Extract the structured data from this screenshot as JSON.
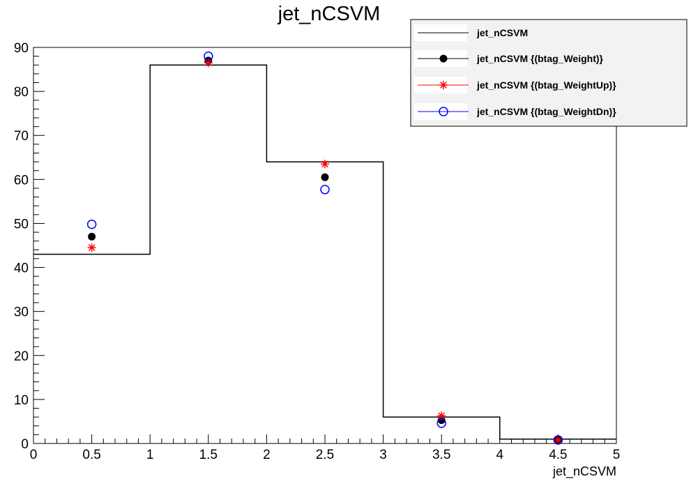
{
  "chart_data": {
    "type": "histogram",
    "title": "jet_nCSVM",
    "xlabel": "jet_nCSVM",
    "ylabel": "",
    "xlim": [
      0,
      5
    ],
    "ylim": [
      0,
      90
    ],
    "x_ticks": [
      "0",
      "0.5",
      "1",
      "1.5",
      "2",
      "2.5",
      "3",
      "3.5",
      "4",
      "4.5",
      "5"
    ],
    "y_ticks": [
      "0",
      "10",
      "20",
      "30",
      "40",
      "50",
      "60",
      "70",
      "80",
      "90"
    ],
    "bin_edges": [
      0,
      1,
      2,
      3,
      4,
      5
    ],
    "grid": false,
    "legend_position": "top-right",
    "series": [
      {
        "name": "jet_nCSVM",
        "style": "step",
        "color": "#000000",
        "values": [
          43,
          86,
          64,
          6,
          1
        ]
      },
      {
        "name": "jet_nCSVM {(btag_Weight)}",
        "style": "filled-circle",
        "color": "#000000",
        "x": [
          0.5,
          1.5,
          2.5,
          3.5,
          4.5
        ],
        "values": [
          47,
          87,
          60.5,
          5.3,
          0.8
        ]
      },
      {
        "name": "jet_nCSVM {(btag_WeightUp)}",
        "style": "star",
        "color": "#ff0000",
        "x": [
          0.5,
          1.5,
          2.5,
          3.5,
          4.5
        ],
        "values": [
          44.5,
          86.5,
          63.5,
          6.3,
          0.8
        ]
      },
      {
        "name": "jet_nCSVM {(btag_WeightDn)}",
        "style": "open-circle",
        "color": "#0000ff",
        "x": [
          0.5,
          1.5,
          2.5,
          3.5,
          4.5
        ],
        "values": [
          49.8,
          88,
          57.7,
          4.6,
          0.8
        ]
      }
    ]
  }
}
